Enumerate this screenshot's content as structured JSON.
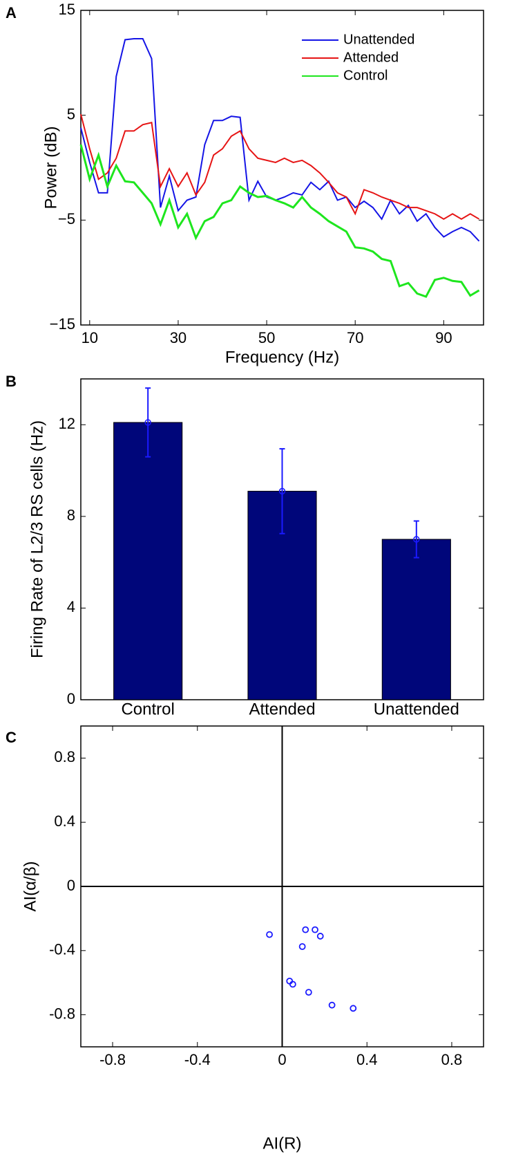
{
  "chart_data": [
    {
      "type": "line",
      "panel_label": "A",
      "xlabel": "Frequency (Hz)",
      "ylabel": "Power (dB)",
      "x": [
        8,
        10,
        12,
        14,
        16,
        18,
        20,
        22,
        24,
        26,
        28,
        30,
        32,
        34,
        36,
        38,
        40,
        42,
        44,
        46,
        48,
        50,
        52,
        54,
        56,
        58,
        60,
        62,
        64,
        66,
        68,
        70,
        72,
        74,
        76,
        78,
        80,
        82,
        84,
        86,
        88,
        90,
        92,
        94,
        96,
        98
      ],
      "series": [
        {
          "name": "Unattended",
          "color": "#1414e6",
          "values": [
            3.8,
            0.5,
            -2.4,
            -2.4,
            8.7,
            12.2,
            12.3,
            12.3,
            10.4,
            -3.8,
            -0.8,
            -4.1,
            -3.1,
            -2.8,
            2.2,
            4.5,
            4.5,
            4.9,
            4.8,
            -3.1,
            -1.3,
            -2.8,
            -3.1,
            -2.8,
            -2.4,
            -2.6,
            -1.4,
            -2.1,
            -1.3,
            -3.1,
            -2.8,
            -3.8,
            -3.2,
            -3.8,
            -4.9,
            -3.1,
            -4.4,
            -3.6,
            -5.1,
            -4.4,
            -5.7,
            -6.6,
            -6.1,
            -5.7,
            -6.1,
            -7.0
          ]
        },
        {
          "name": "Attended",
          "color": "#e61414",
          "values": [
            5.1,
            1.8,
            -1.1,
            -0.5,
            0.9,
            3.5,
            3.5,
            4.1,
            4.3,
            -1.8,
            -0.1,
            -1.8,
            -0.5,
            -2.6,
            -1.4,
            1.2,
            1.8,
            3.0,
            3.5,
            1.8,
            0.9,
            0.7,
            0.5,
            0.9,
            0.5,
            0.7,
            0.2,
            -0.5,
            -1.4,
            -2.4,
            -2.8,
            -4.4,
            -2.1,
            -2.4,
            -2.8,
            -3.1,
            -3.4,
            -3.8,
            -3.8,
            -4.1,
            -4.4,
            -4.9,
            -4.4,
            -4.9,
            -4.4,
            -4.9
          ]
        },
        {
          "name": "Control",
          "color": "#1ee61e",
          "values": [
            2.2,
            -1.1,
            1.2,
            -1.8,
            0.2,
            -1.3,
            -1.4,
            -2.4,
            -3.4,
            -5.4,
            -3.1,
            -5.7,
            -4.4,
            -6.7,
            -5.1,
            -4.7,
            -3.4,
            -3.1,
            -1.8,
            -2.4,
            -2.8,
            -2.7,
            -3.1,
            -3.4,
            -3.8,
            -2.8,
            -3.8,
            -4.4,
            -5.1,
            -5.6,
            -6.1,
            -7.6,
            -7.7,
            -8.0,
            -8.7,
            -8.9,
            -11.3,
            -11.0,
            -12.0,
            -12.3,
            -10.7,
            -10.5,
            -10.8,
            -10.9,
            -12.2,
            -11.7
          ]
        }
      ],
      "xlim": [
        8,
        99
      ],
      "xticks": [
        10,
        30,
        50,
        70,
        90
      ],
      "ylim": [
        -15,
        15
      ],
      "yticks": [
        {
          "value": -15,
          "label": "−15"
        },
        {
          "value": -5,
          "label": "−5"
        },
        5,
        15
      ],
      "legend": "upper right"
    },
    {
      "type": "bar",
      "panel_label": "B",
      "ylabel": "Firing Rate of L2/3 RS cells (Hz)",
      "categories": [
        "Control",
        "Attended",
        "Unattended"
      ],
      "values": [
        12.1,
        9.1,
        7.0
      ],
      "errors": [
        1.5,
        1.85,
        0.8
      ],
      "color": "#00067a",
      "error_color": "#1a1aff",
      "ylim": [
        0,
        14
      ],
      "yticks": [
        0,
        4,
        8,
        12
      ]
    },
    {
      "type": "scatter",
      "panel_label": "C",
      "xlabel": "AI(R)",
      "ylabel": "AI(α/β)",
      "x": [
        -0.06,
        0.11,
        0.155,
        0.18,
        0.095,
        0.035,
        0.05,
        0.125,
        0.235,
        0.335
      ],
      "values": [
        -0.3,
        -0.27,
        -0.27,
        -0.31,
        -0.375,
        -0.59,
        -0.61,
        -0.66,
        -0.74,
        -0.76
      ],
      "color": "#1a1aff",
      "xlim": [
        -0.95,
        0.95
      ],
      "xticks": [
        -0.8,
        -0.4,
        0,
        0.4,
        0.8
      ],
      "ylim": [
        -1,
        1
      ],
      "yticks": [
        -0.8,
        -0.4,
        0,
        0.4,
        0.8
      ]
    }
  ]
}
